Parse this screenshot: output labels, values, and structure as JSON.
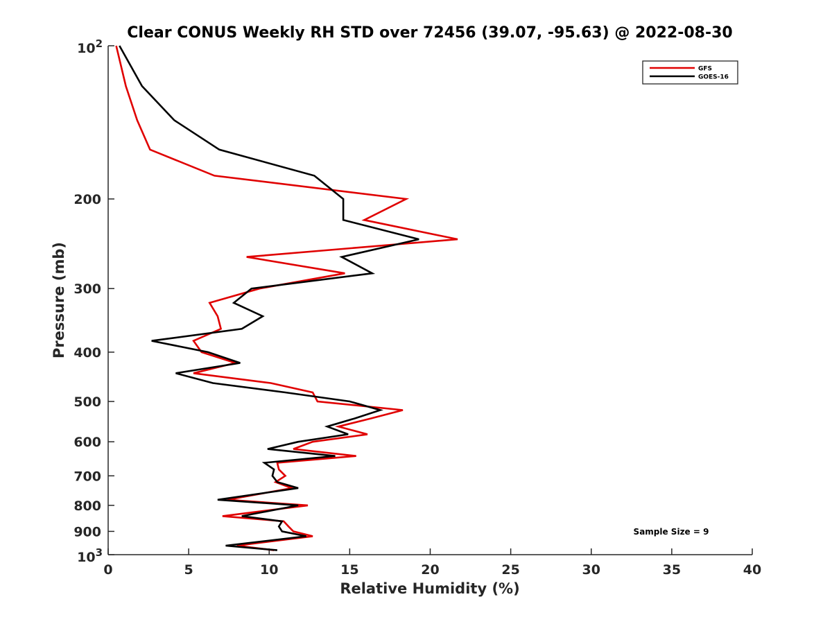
{
  "chart_data": {
    "type": "line",
    "title": "Clear CONUS Weekly RH STD over 72456 (39.07, -95.63) @ 2022-08-30",
    "xlabel": "Relative Humidity (%)",
    "ylabel": "Pressure (mb)",
    "xlim": [
      0,
      40
    ],
    "ylim": [
      100,
      1000
    ],
    "yscale": "log",
    "y_reversed": true,
    "grid": false,
    "legend_position": "top-right",
    "xticks": [
      0,
      5,
      10,
      15,
      20,
      25,
      30,
      35,
      40
    ],
    "xtick_labels": [
      "0",
      "5",
      "10",
      "15",
      "20",
      "25",
      "30",
      "35",
      "40"
    ],
    "yticks": [
      100,
      200,
      300,
      400,
      500,
      600,
      700,
      800,
      900,
      1000
    ],
    "ytick_labels": [
      "10^2",
      "200",
      "300",
      "400",
      "500",
      "600",
      "700",
      "800",
      "900",
      "10^3"
    ],
    "annotation": "Sample Size = 9",
    "series": [
      {
        "name": "GFS",
        "color": "#e00000",
        "points": [
          [
            0.5,
            100
          ],
          [
            1.1,
            120
          ],
          [
            1.8,
            140
          ],
          [
            2.6,
            160
          ],
          [
            6.6,
            180
          ],
          [
            18.5,
            200
          ],
          [
            15.9,
            220
          ],
          [
            21.7,
            240
          ],
          [
            8.6,
            260
          ],
          [
            14.7,
            280
          ],
          [
            9.4,
            300
          ],
          [
            6.3,
            320
          ],
          [
            6.8,
            340
          ],
          [
            7.0,
            360
          ],
          [
            5.3,
            380
          ],
          [
            5.8,
            400
          ],
          [
            7.9,
            420
          ],
          [
            5.3,
            440
          ],
          [
            10.1,
            460
          ],
          [
            12.7,
            480
          ],
          [
            13.0,
            500
          ],
          [
            18.3,
            520
          ],
          [
            16.3,
            540
          ],
          [
            14.3,
            560
          ],
          [
            16.1,
            580
          ],
          [
            12.7,
            600
          ],
          [
            11.5,
            620
          ],
          [
            15.4,
            640
          ],
          [
            10.5,
            660
          ],
          [
            10.6,
            680
          ],
          [
            11.0,
            700
          ],
          [
            10.4,
            720
          ],
          [
            11.4,
            740
          ],
          [
            7.4,
            780
          ],
          [
            12.4,
            800
          ],
          [
            7.1,
            840
          ],
          [
            10.9,
            860
          ],
          [
            11.2,
            880
          ],
          [
            11.5,
            900
          ],
          [
            12.7,
            920
          ],
          [
            8.0,
            960
          ],
          [
            10.3,
            980
          ]
        ]
      },
      {
        "name": "GOES-16",
        "color": "#000000",
        "points": [
          [
            0.7,
            100
          ],
          [
            2.1,
            120
          ],
          [
            4.1,
            140
          ],
          [
            6.9,
            160
          ],
          [
            12.8,
            180
          ],
          [
            14.6,
            200
          ],
          [
            14.6,
            220
          ],
          [
            19.3,
            240
          ],
          [
            14.5,
            260
          ],
          [
            16.4,
            280
          ],
          [
            8.9,
            300
          ],
          [
            7.8,
            320
          ],
          [
            9.6,
            340
          ],
          [
            8.3,
            360
          ],
          [
            2.7,
            380
          ],
          [
            6.2,
            400
          ],
          [
            8.2,
            420
          ],
          [
            4.2,
            440
          ],
          [
            6.5,
            460
          ],
          [
            11.0,
            480
          ],
          [
            15.0,
            500
          ],
          [
            16.9,
            520
          ],
          [
            15.3,
            540
          ],
          [
            13.6,
            560
          ],
          [
            14.9,
            580
          ],
          [
            11.8,
            600
          ],
          [
            9.9,
            620
          ],
          [
            14.1,
            640
          ],
          [
            9.7,
            660
          ],
          [
            10.3,
            680
          ],
          [
            10.2,
            700
          ],
          [
            10.5,
            720
          ],
          [
            11.8,
            740
          ],
          [
            6.8,
            780
          ],
          [
            11.8,
            800
          ],
          [
            8.3,
            840
          ],
          [
            10.8,
            860
          ],
          [
            10.6,
            880
          ],
          [
            10.8,
            900
          ],
          [
            12.3,
            920
          ],
          [
            7.3,
            960
          ],
          [
            10.5,
            980
          ]
        ]
      }
    ]
  }
}
